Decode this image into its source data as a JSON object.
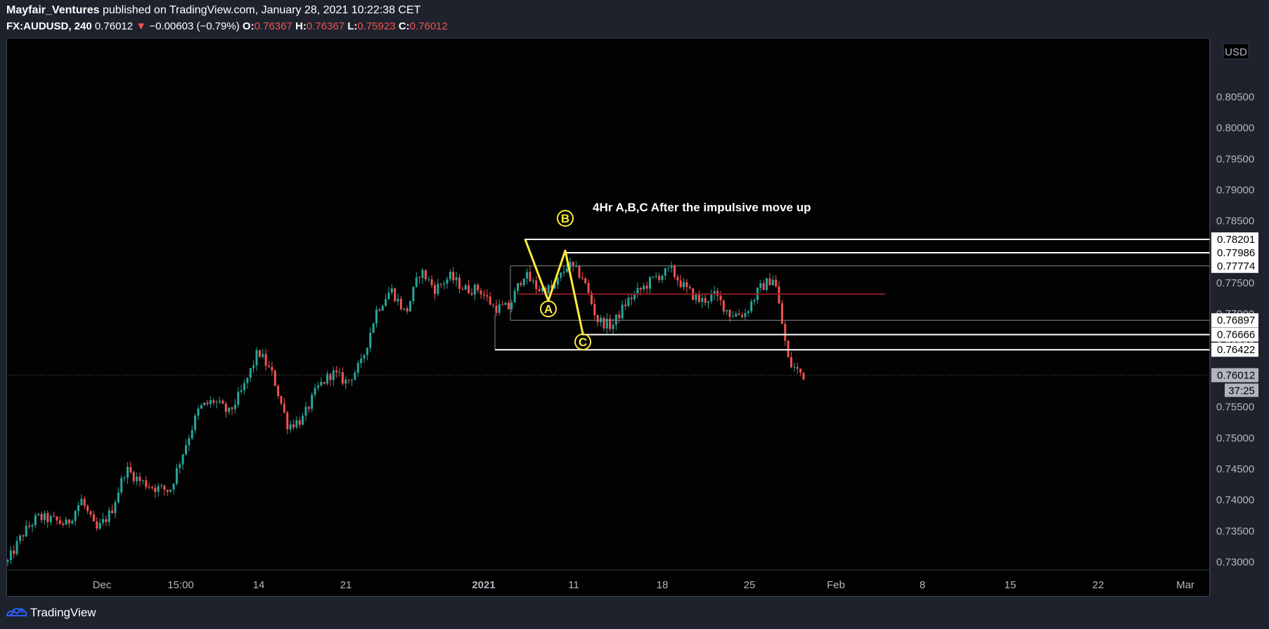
{
  "header": {
    "author": "Mayfair_Ventures",
    "published_text": "published on TradingView.com, January 28, 2021 10:22:38 CET",
    "symbol": "FX:AUDUSD, 240",
    "last": "0.76012",
    "change": "−0.00603 (−0.79%)",
    "open_label": "O:",
    "open": "0.76367",
    "high_label": "H:",
    "high": "0.76367",
    "low_label": "L:",
    "low": "0.75923",
    "close_label": "C:",
    "close": "0.76012"
  },
  "currency_badge": "USD",
  "countdown": "37:25",
  "footer": {
    "brand": "TradingView"
  },
  "colors": {
    "up": "#26a69a",
    "down": "#ef5350",
    "wave": "#ffeb3b",
    "level": "#ffffff",
    "pivot": "#8b1a1a",
    "background": "#020203"
  },
  "chart_data": {
    "type": "candlestick",
    "title": "4Hr A,B,C After the impulsive move up",
    "timeframe": "240",
    "y_axis": {
      "range": [
        0.7287,
        0.8145
      ],
      "ticks": [
        "0.73000",
        "0.73500",
        "0.74000",
        "0.74500",
        "0.75000",
        "0.75500",
        "0.76000",
        "0.76500",
        "0.77000",
        "0.77500",
        "0.78000",
        "0.78500",
        "0.79000",
        "0.79500",
        "0.80000",
        "0.80500"
      ]
    },
    "x_axis": {
      "ticks": [
        {
          "label": "Dec",
          "bold": false
        },
        {
          "label": "15:00",
          "bold": false
        },
        {
          "label": "14",
          "bold": false
        },
        {
          "label": "21",
          "bold": false
        },
        {
          "label": "2021",
          "bold": true
        },
        {
          "label": "11",
          "bold": false
        },
        {
          "label": "18",
          "bold": false
        },
        {
          "label": "25",
          "bold": false
        },
        {
          "label": "Feb",
          "bold": false
        },
        {
          "label": "8",
          "bold": false
        },
        {
          "label": "15",
          "bold": false
        },
        {
          "label": "22",
          "bold": false
        },
        {
          "label": "Mar",
          "bold": false
        }
      ]
    },
    "price_levels": [
      {
        "value": 0.78201,
        "label": "0.78201"
      },
      {
        "value": 0.77986,
        "label": "0.77986"
      },
      {
        "value": 0.77774,
        "label": "0.77774"
      },
      {
        "value": 0.76897,
        "label": "0.76897"
      },
      {
        "value": 0.76666,
        "label": "0.76666"
      },
      {
        "value": 0.76422,
        "label": "0.76422"
      }
    ],
    "pivot_level": 0.7732,
    "last_price": {
      "value": 0.76012,
      "label": "0.76012"
    },
    "abc_wave": {
      "points": [
        {
          "label": "",
          "price": 0.78201
        },
        {
          "label": "A",
          "price": 0.7721
        },
        {
          "label": "B",
          "price": 0.7802
        },
        {
          "label": "C",
          "price": 0.7668
        }
      ]
    },
    "path_anchors": [
      0.73,
      0.7345,
      0.7372,
      0.7368,
      0.736,
      0.74,
      0.735,
      0.738,
      0.745,
      0.743,
      0.742,
      0.7415,
      0.7485,
      0.7548,
      0.756,
      0.754,
      0.758,
      0.764,
      0.76,
      0.752,
      0.753,
      0.758,
      0.7605,
      0.759,
      0.762,
      0.7705,
      0.774,
      0.77,
      0.777,
      0.774,
      0.776,
      0.774,
      0.774,
      0.771,
      0.771,
      0.7765,
      0.774,
      0.774,
      0.778,
      0.776,
      0.769,
      0.768,
      0.772,
      0.774,
      0.776,
      0.777,
      0.774,
      0.772,
      0.773,
      0.77,
      0.77,
      0.774,
      0.776,
      0.762,
      0.7601
    ]
  }
}
